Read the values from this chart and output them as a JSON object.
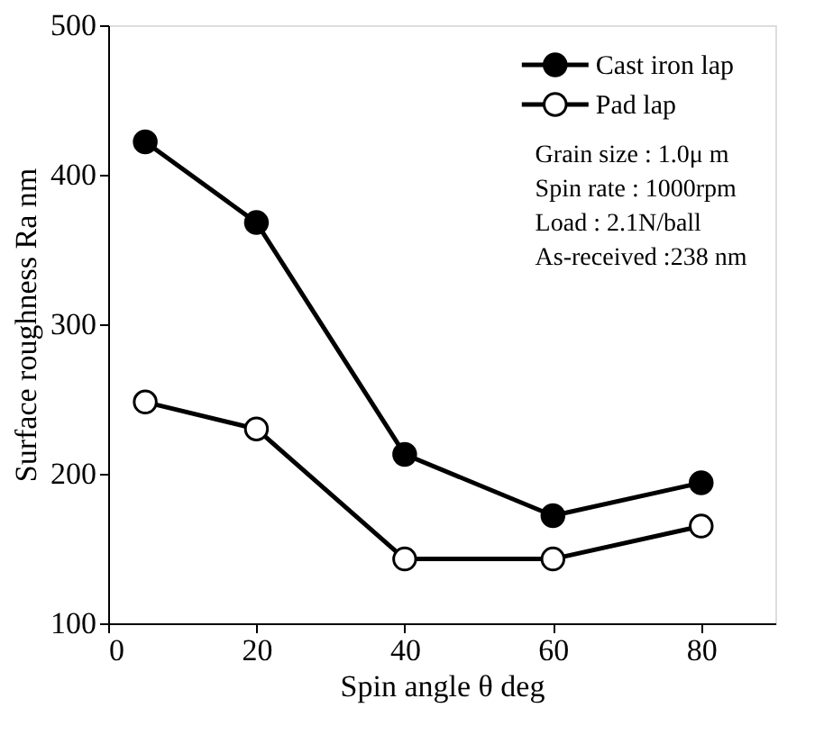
{
  "chart_data": {
    "type": "line",
    "xlabel": "Spin angle    θ   deg",
    "ylabel": "Surface roughness  Ra  nm",
    "x": [
      5,
      20,
      40,
      60,
      80
    ],
    "series": [
      {
        "name": "Cast iron lap",
        "color": "#000000",
        "values": [
          422,
          368,
          213,
          172,
          194
        ]
      },
      {
        "name": "Pad lap",
        "color": "#000000",
        "values": [
          248,
          230,
          143,
          143,
          165
        ]
      }
    ],
    "xlim": [
      0,
      90
    ],
    "xticks": [
      0,
      20,
      40,
      60,
      80
    ],
    "ylim": [
      100,
      500
    ],
    "yticks": [
      100,
      200,
      300,
      400,
      500
    ],
    "grid": false,
    "legend": "top right",
    "marker": "circle",
    "line_style": "solid",
    "annotations": [
      "Grain size   : 1.0μ m",
      "Spin rate    : 1000rpm",
      "Load           : 2.1N/ball",
      "As-received :238 nm"
    ]
  }
}
